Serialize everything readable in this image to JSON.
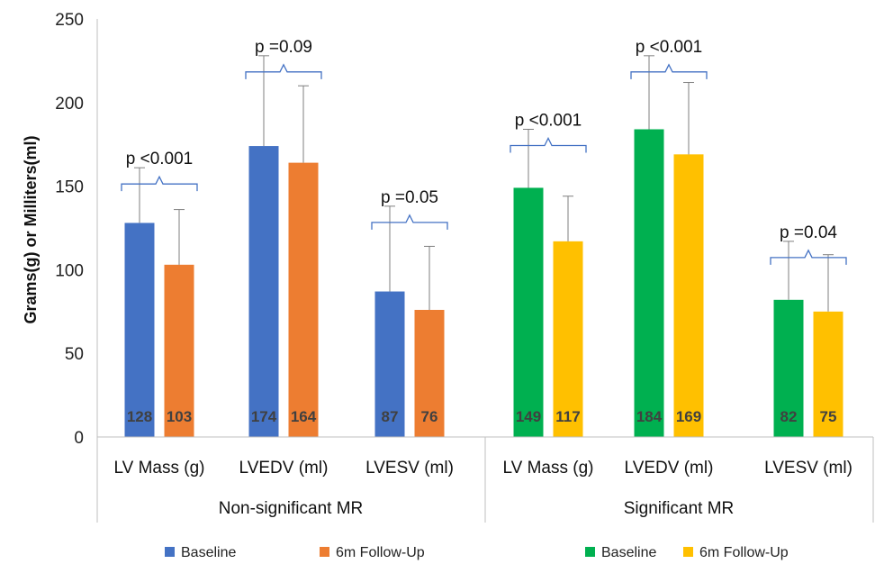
{
  "chart_data": {
    "type": "bar",
    "ylabel": "Grams(g) or Milliters(ml)",
    "ylim": [
      0,
      250
    ],
    "yticks": [
      0,
      50,
      100,
      150,
      200,
      250
    ],
    "grid": false,
    "groups": [
      {
        "name": "Non-significant MR",
        "categories": [
          "LV Mass (g)",
          "LVEDV (ml)",
          "LVESV (ml)"
        ],
        "series": [
          {
            "name": "Baseline",
            "color": "#4472c4",
            "values": [
              128,
              174,
              87
            ],
            "error_upper": [
              161,
              228,
              138
            ]
          },
          {
            "name": "6m Follow-Up",
            "color": "#ed7d31",
            "values": [
              103,
              164,
              76
            ],
            "error_upper": [
              136,
              210,
              114
            ]
          }
        ],
        "p_values": [
          "p <0.001",
          "p =0.09",
          "p =0.05"
        ]
      },
      {
        "name": "Significant MR",
        "categories": [
          "LV Mass (g)",
          "LVEDV (ml)",
          "LVESV (ml)"
        ],
        "series": [
          {
            "name": "Baseline",
            "color": "#00b050",
            "values": [
              149,
              184,
              82
            ],
            "error_upper": [
              184,
              228,
              117
            ]
          },
          {
            "name": "6m Follow-Up",
            "color": "#ffc000",
            "values": [
              117,
              169,
              75
            ],
            "error_upper": [
              144,
              212,
              109
            ]
          }
        ],
        "p_values": [
          "p <0.001",
          "p <0.001",
          "p =0.04"
        ]
      }
    ],
    "legends": [
      {
        "items": [
          {
            "label": "Baseline",
            "color": "#4472c4"
          },
          {
            "label": "6m Follow-Up",
            "color": "#ed7d31"
          }
        ],
        "placement": "bottom-left"
      },
      {
        "items": [
          {
            "label": "Baseline",
            "color": "#00b050"
          },
          {
            "label": "6m Follow-Up",
            "color": "#ffc000"
          }
        ],
        "placement": "bottom-right"
      }
    ]
  }
}
